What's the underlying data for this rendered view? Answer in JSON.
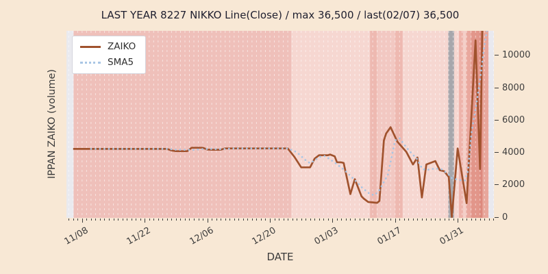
{
  "figure": {
    "background": "#f8e8d5",
    "title": "LAST YEAR 8227 NIKKO Line(Close) / max 36,500 / last(02/07) 36,500"
  },
  "chart_data": {
    "type": "line",
    "title": "LAST YEAR 8227 NIKKO Line(Close) / max 36,500 / last(02/07) 36,500",
    "xlabel": "DATE",
    "ylabel": "IPPAN ZAIKO (volume)",
    "x_unit": "days since 11/08",
    "x_domain_days": [
      -3.5,
      92.1
    ],
    "y_domain": [
      0,
      11500
    ],
    "y_ticks": [
      0,
      2000,
      4000,
      6000,
      8000,
      10000
    ],
    "x_major_ticks": [
      {
        "day": 0,
        "label": "11/08"
      },
      {
        "day": 14,
        "label": "11/22"
      },
      {
        "day": 28,
        "label": "12/06"
      },
      {
        "day": 42,
        "label": "12/20"
      },
      {
        "day": 56,
        "label": "01/03"
      },
      {
        "day": 70,
        "label": "01/17"
      },
      {
        "day": 84,
        "label": "01/31"
      }
    ],
    "grid": {
      "vertical_daily_dashed": true,
      "color": "rgba(255,255,255,0.55)"
    },
    "legend": {
      "position": "upper-left",
      "entries": [
        {
          "label": "ZAIKO",
          "color": "#A0522D",
          "style": "solid"
        },
        {
          "label": "SMA5",
          "color": "#a9c6e4",
          "style": "dotted"
        }
      ]
    },
    "series": [
      {
        "name": "ZAIKO",
        "color": "#A0522D",
        "style": "solid",
        "points": [
          [
            -2,
            4200
          ],
          [
            19,
            4200
          ],
          [
            20,
            4100
          ],
          [
            21,
            4060
          ],
          [
            23.5,
            4060
          ],
          [
            24.5,
            4270
          ],
          [
            27,
            4270
          ],
          [
            28,
            4160
          ],
          [
            29,
            4150
          ],
          [
            31,
            4150
          ],
          [
            32,
            4230
          ],
          [
            46,
            4230
          ],
          [
            47.5,
            3700
          ],
          [
            49,
            3060
          ],
          [
            51,
            3060
          ],
          [
            52,
            3600
          ],
          [
            53,
            3810
          ],
          [
            55,
            3810
          ],
          [
            55.5,
            3850
          ],
          [
            56.5,
            3740
          ],
          [
            57,
            3380
          ],
          [
            58,
            3370
          ],
          [
            58.5,
            3330
          ],
          [
            60,
            1410
          ],
          [
            61,
            2330
          ],
          [
            62.5,
            1270
          ],
          [
            63,
            1130
          ],
          [
            64,
            920
          ],
          [
            66,
            870
          ],
          [
            66.5,
            990
          ],
          [
            67.5,
            4720
          ],
          [
            68,
            5150
          ],
          [
            69,
            5540
          ],
          [
            70.5,
            4650
          ],
          [
            72.5,
            4020
          ],
          [
            74,
            3240
          ],
          [
            75,
            3670
          ],
          [
            76,
            1200
          ],
          [
            77,
            3240
          ],
          [
            79,
            3450
          ],
          [
            80,
            2890
          ],
          [
            81,
            2820
          ],
          [
            82,
            2470
          ],
          [
            82.7,
            0
          ],
          [
            84,
            4230
          ],
          [
            86,
            850
          ],
          [
            88,
            10900
          ],
          [
            89,
            2960
          ],
          [
            91,
            36500
          ]
        ]
      },
      {
        "name": "SMA5",
        "color": "#a9c6e4",
        "style": "dotted",
        "points": [
          [
            2,
            4200
          ],
          [
            19,
            4200
          ],
          [
            21,
            4150
          ],
          [
            25,
            4140
          ],
          [
            27,
            4190
          ],
          [
            29,
            4200
          ],
          [
            31,
            4180
          ],
          [
            34,
            4230
          ],
          [
            46,
            4230
          ],
          [
            48,
            4000
          ],
          [
            50,
            3500
          ],
          [
            51,
            3315
          ],
          [
            53.4,
            3740
          ],
          [
            54.4,
            3760
          ],
          [
            56.7,
            3315
          ],
          [
            58.7,
            2890
          ],
          [
            60.8,
            2325
          ],
          [
            62.8,
            1760
          ],
          [
            64.4,
            1410
          ],
          [
            65.4,
            1340
          ],
          [
            66.4,
            1620
          ],
          [
            67.4,
            2110
          ],
          [
            68.4,
            2610
          ],
          [
            70,
            4720
          ],
          [
            71,
            4860
          ],
          [
            72.5,
            4300
          ],
          [
            73.8,
            3880
          ],
          [
            74.8,
            3620
          ],
          [
            76.1,
            2960
          ],
          [
            77.1,
            2900
          ],
          [
            78.9,
            2990
          ],
          [
            80.4,
            2945
          ],
          [
            82,
            2610
          ],
          [
            82.7,
            2400
          ],
          [
            84.3,
            2270
          ],
          [
            85.6,
            2260
          ],
          [
            86.3,
            2820
          ],
          [
            87.1,
            5220
          ],
          [
            88.4,
            7330
          ],
          [
            89.2,
            8880
          ],
          [
            89.9,
            10430
          ],
          [
            90.6,
            11600
          ]
        ]
      }
    ],
    "background_bands": [
      {
        "from": -3.5,
        "to": -1.9,
        "color": "#eaeaef"
      },
      {
        "from": -1.9,
        "to": 46.8,
        "color": "#efc0ba"
      },
      {
        "from": 46.8,
        "to": 64.4,
        "color": "#f6d7d1"
      },
      {
        "from": 64.4,
        "to": 65.9,
        "color": "#eeb9b1"
      },
      {
        "from": 65.9,
        "to": 70.0,
        "color": "#f2c8c2"
      },
      {
        "from": 70.0,
        "to": 71.7,
        "color": "#eeb9b1"
      },
      {
        "from": 71.7,
        "to": 81.9,
        "color": "#f6d7d1"
      },
      {
        "from": 81.9,
        "to": 83.2,
        "color": "#a7a7ac"
      },
      {
        "from": 83.2,
        "to": 84.3,
        "color": "#f6d7d1"
      },
      {
        "from": 84.3,
        "to": 85.2,
        "color": "#eeb4ab"
      },
      {
        "from": 85.2,
        "to": 85.9,
        "color": "#f4cfc8"
      },
      {
        "from": 85.9,
        "to": 87.0,
        "color": "#e9a89e"
      },
      {
        "from": 87.0,
        "to": 88.9,
        "color": "#e2968a"
      },
      {
        "from": 88.9,
        "to": 89.6,
        "color": "#dd897d"
      },
      {
        "from": 89.6,
        "to": 90.9,
        "color": "#e8a79c"
      },
      {
        "from": 90.9,
        "to": 92.1,
        "color": "#e9e9ef"
      }
    ]
  }
}
